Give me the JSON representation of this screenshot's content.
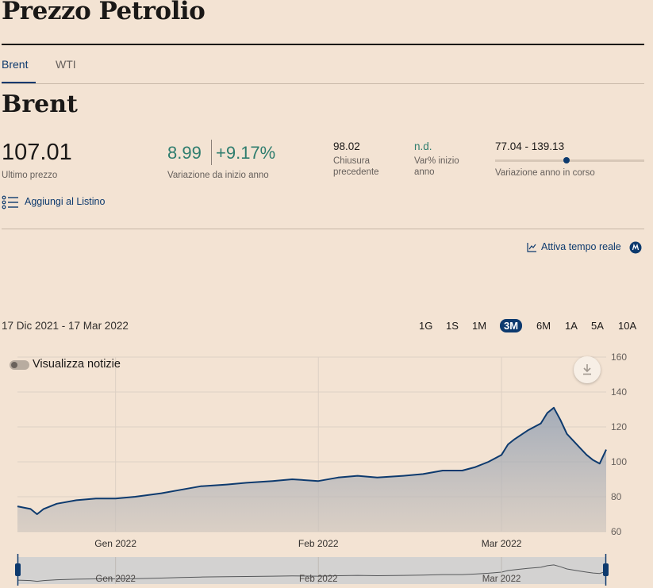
{
  "page": {
    "title": "Prezzo Petrolio"
  },
  "tabs": [
    {
      "label": "Brent",
      "active": true
    },
    {
      "label": "WTI",
      "active": false
    }
  ],
  "instrument": {
    "title": "Brent",
    "last_price": "107.01",
    "last_price_label": "Ultimo prezzo",
    "ytd_change_abs": "8.99",
    "ytd_change_pct": "+9.17%",
    "ytd_change_label": "Variazione da inizio anno",
    "prev_close": "98.02",
    "prev_close_label_1": "Chiusura",
    "prev_close_label_2": "precedente",
    "ytd_var_value": "n.d.",
    "ytd_var_label_1": "Var% inizio",
    "ytd_var_label_2": "anno",
    "range": "77.04 - 139.13",
    "range_label": "Variazione anno in corso",
    "range_position": 0.48
  },
  "actions": {
    "watchlist_label": "Aggiungi al Listino",
    "realtime_label": "Attiva tempo reale"
  },
  "chart_controls": {
    "date_range": "17 Dic 2021 - 17 Mar 2022",
    "periods": [
      {
        "label": "1G",
        "active": false
      },
      {
        "label": "1S",
        "active": false
      },
      {
        "label": "1M",
        "active": false
      },
      {
        "label": "3M",
        "active": true
      },
      {
        "label": "6M",
        "active": false
      },
      {
        "label": "1A",
        "active": false
      },
      {
        "label": "5A",
        "active": false
      },
      {
        "label": "10A",
        "active": false
      }
    ],
    "news_toggle_label": "Visualizza notizie"
  },
  "colors": {
    "background": "#f3e3d3",
    "accent": "#0d3a6e",
    "positive": "#2e7d6e",
    "line": "#0d3a6e"
  },
  "icons": [
    "list-icon",
    "line-chart-icon",
    "realtime-badge-icon",
    "download-icon"
  ],
  "chart_data": {
    "type": "area",
    "title": "",
    "xlabel": "",
    "ylabel": "",
    "ylim": [
      60,
      160
    ],
    "yticks": [
      60,
      80,
      100,
      120,
      140,
      160
    ],
    "xticks": [
      {
        "label": "Gen 2022",
        "x": "2022-01-01"
      },
      {
        "label": "Feb 2022",
        "x": "2022-02-01"
      },
      {
        "label": "Mar 2022",
        "x": "2022-03-01"
      }
    ],
    "grid": true,
    "x_start": "2021-12-17",
    "x_end": "2022-03-17",
    "series": [
      {
        "x": [
          "2021-12-17",
          "2021-12-19",
          "2021-12-20",
          "2021-12-21",
          "2021-12-23",
          "2021-12-26",
          "2021-12-29",
          "2022-01-01",
          "2022-01-04",
          "2022-01-08",
          "2022-01-11",
          "2022-01-14",
          "2022-01-18",
          "2022-01-21",
          "2022-01-25",
          "2022-01-28",
          "2022-02-01",
          "2022-02-04",
          "2022-02-07",
          "2022-02-10",
          "2022-02-14",
          "2022-02-17",
          "2022-02-20",
          "2022-02-23",
          "2022-02-25",
          "2022-02-27",
          "2022-03-01",
          "2022-03-02",
          "2022-03-03",
          "2022-03-05",
          "2022-03-07",
          "2022-03-08",
          "2022-03-09",
          "2022-03-10",
          "2022-03-11",
          "2022-03-13",
          "2022-03-14",
          "2022-03-15",
          "2022-03-16",
          "2022-03-17"
        ],
        "values": [
          74.5,
          73,
          70,
          73,
          76,
          78,
          79,
          79,
          80,
          82,
          84,
          86,
          87,
          88,
          89,
          90,
          89,
          91,
          92,
          91,
          92,
          93,
          95,
          95,
          97,
          100,
          104,
          110,
          113,
          118,
          122,
          128,
          131,
          124,
          116,
          108,
          104,
          101,
          99,
          107
        ]
      }
    ],
    "navigator": {
      "xticks": [
        "Gen 2022",
        "Feb 2022",
        "Mar 2022"
      ]
    }
  }
}
